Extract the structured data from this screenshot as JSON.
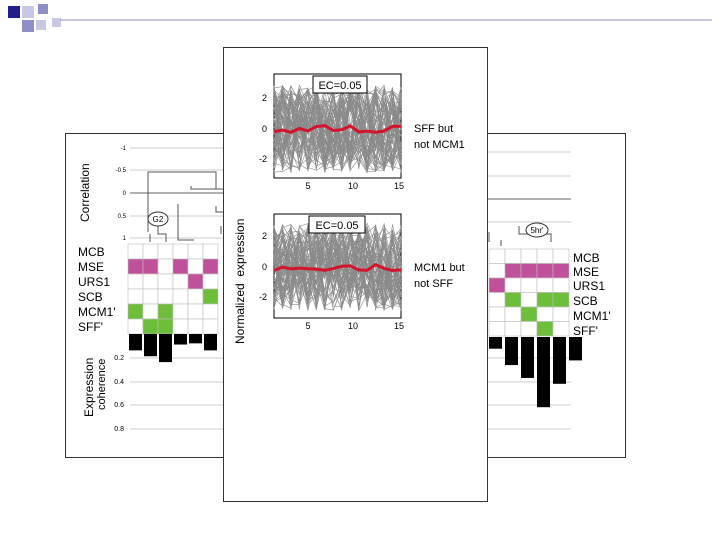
{
  "slide": {
    "accent_colors": [
      "#1f1f8f",
      "#8f8fc8",
      "#c8c8e4"
    ]
  },
  "left_panel": {
    "correlation_label": "Correlation",
    "correlation_ticks": [
      "-1",
      "-0.5",
      "0",
      "0.5",
      "1"
    ],
    "cluster_tag": "G2",
    "motif_labels": [
      "MCB",
      "MSE",
      "URS1",
      "SCB",
      "MCM1'",
      "SFF'"
    ],
    "coherence_label_line1": "Expression",
    "coherence_label_line2": "coherence",
    "coherence_ticks": [
      "0.2",
      "0.4",
      "0.6",
      "0.8"
    ],
    "coherence_values": [
      0.14,
      0.19,
      0.24,
      0.09,
      0.08,
      0.14
    ],
    "motif_colors": {
      "MSE": "#c0509a",
      "SCB": "#6dbf3a",
      "MCM1'": "#6dbf3a",
      "SFF'": "#6dbf3a"
    }
  },
  "right_panel": {
    "cluster_tag": "5hr'",
    "motif_labels": [
      "MCB",
      "MSE",
      "URS1",
      "SCB",
      "MCM1'",
      "SFF'"
    ],
    "coherence_values": [
      0.1,
      0.24,
      0.35,
      0.6,
      0.4,
      0.2
    ]
  },
  "center_panel": {
    "y_axis_label": "Normalized  expression",
    "top_plot": {
      "ec_label": "EC=0.05",
      "side_label_line1": "SFF but",
      "side_label_line2": "not MCM1",
      "y_ticks": [
        "2",
        "0",
        "-2"
      ],
      "x_ticks": [
        "5",
        "10",
        "15"
      ]
    },
    "bottom_plot": {
      "ec_label": "EC=0.05",
      "side_label_line1": "MCM1 but",
      "side_label_line2": "not SFF",
      "y_ticks": [
        "2",
        "0",
        "-2"
      ],
      "x_ticks": [
        "5",
        "10",
        "15"
      ]
    }
  }
}
